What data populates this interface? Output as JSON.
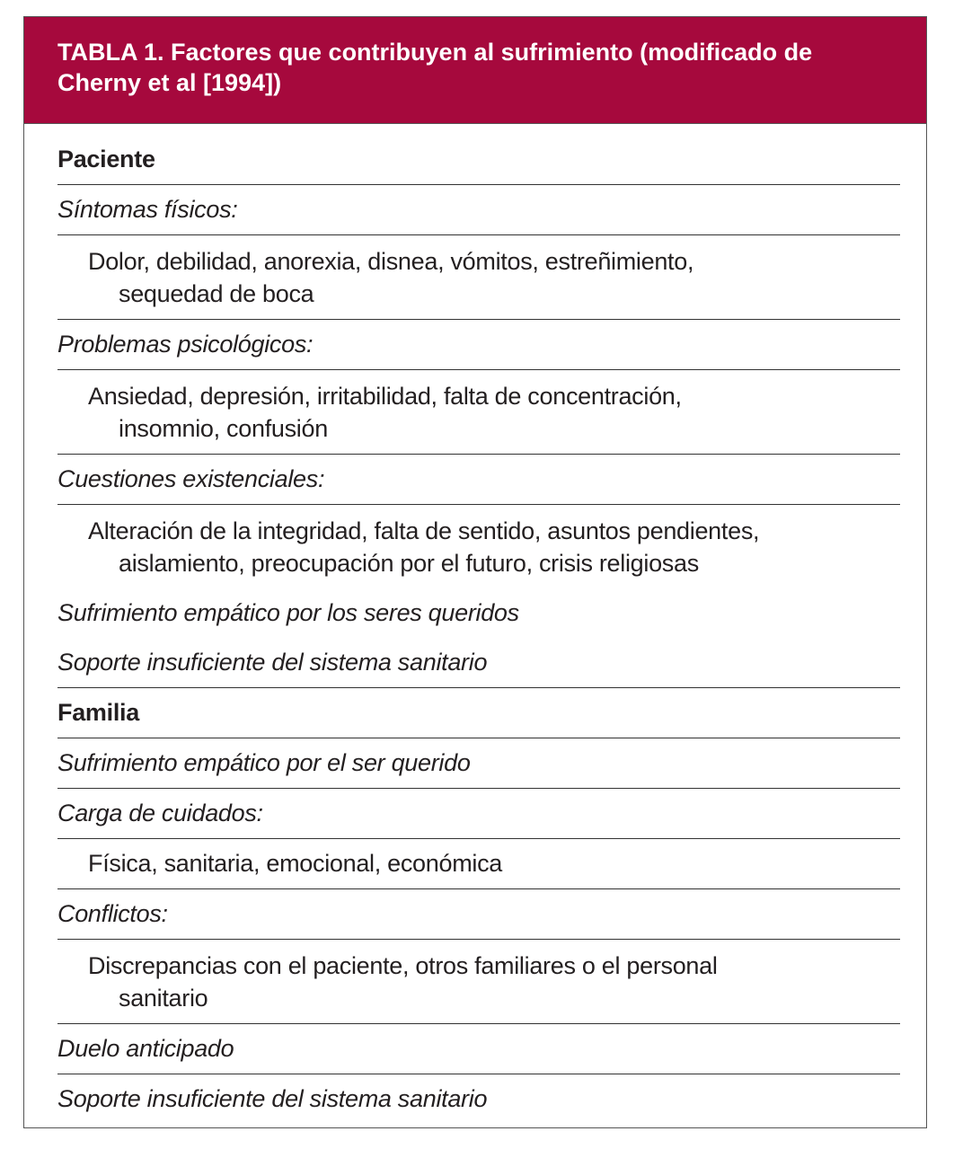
{
  "header": {
    "title": "TABLA 1. Factores que contribuyen al sufrimiento (modificado de Cherny et al [1994])"
  },
  "table": {
    "rows": [
      "Paciente",
      "Síntomas físicos:",
      [
        "Dolor, debilidad, anorexia, disnea, vómitos, estreñimiento,",
        "sequedad de boca"
      ],
      "Problemas psicológicos:",
      [
        "Ansiedad, depresión, irritabilidad, falta de concentración,",
        "insomnio, confusión"
      ],
      "Cuestiones existenciales:",
      [
        "Alteración de la integridad, falta de sentido, asuntos pendientes,",
        "aislamiento, preocupación por el futuro, crisis religiosas"
      ],
      "Sufrimiento empático por los seres queridos",
      "Soporte insuficiente del sistema sanitario",
      "Familia",
      "Sufrimiento empático por el ser querido",
      "Carga de cuidados:",
      "Física, sanitaria, emocional, económica",
      "Conflictos:",
      [
        "Discrepancias con el paciente, otros familiares o el personal",
        "sanitario"
      ],
      "Duelo anticipado",
      "Soporte insuficiente del sistema sanitario"
    ]
  }
}
